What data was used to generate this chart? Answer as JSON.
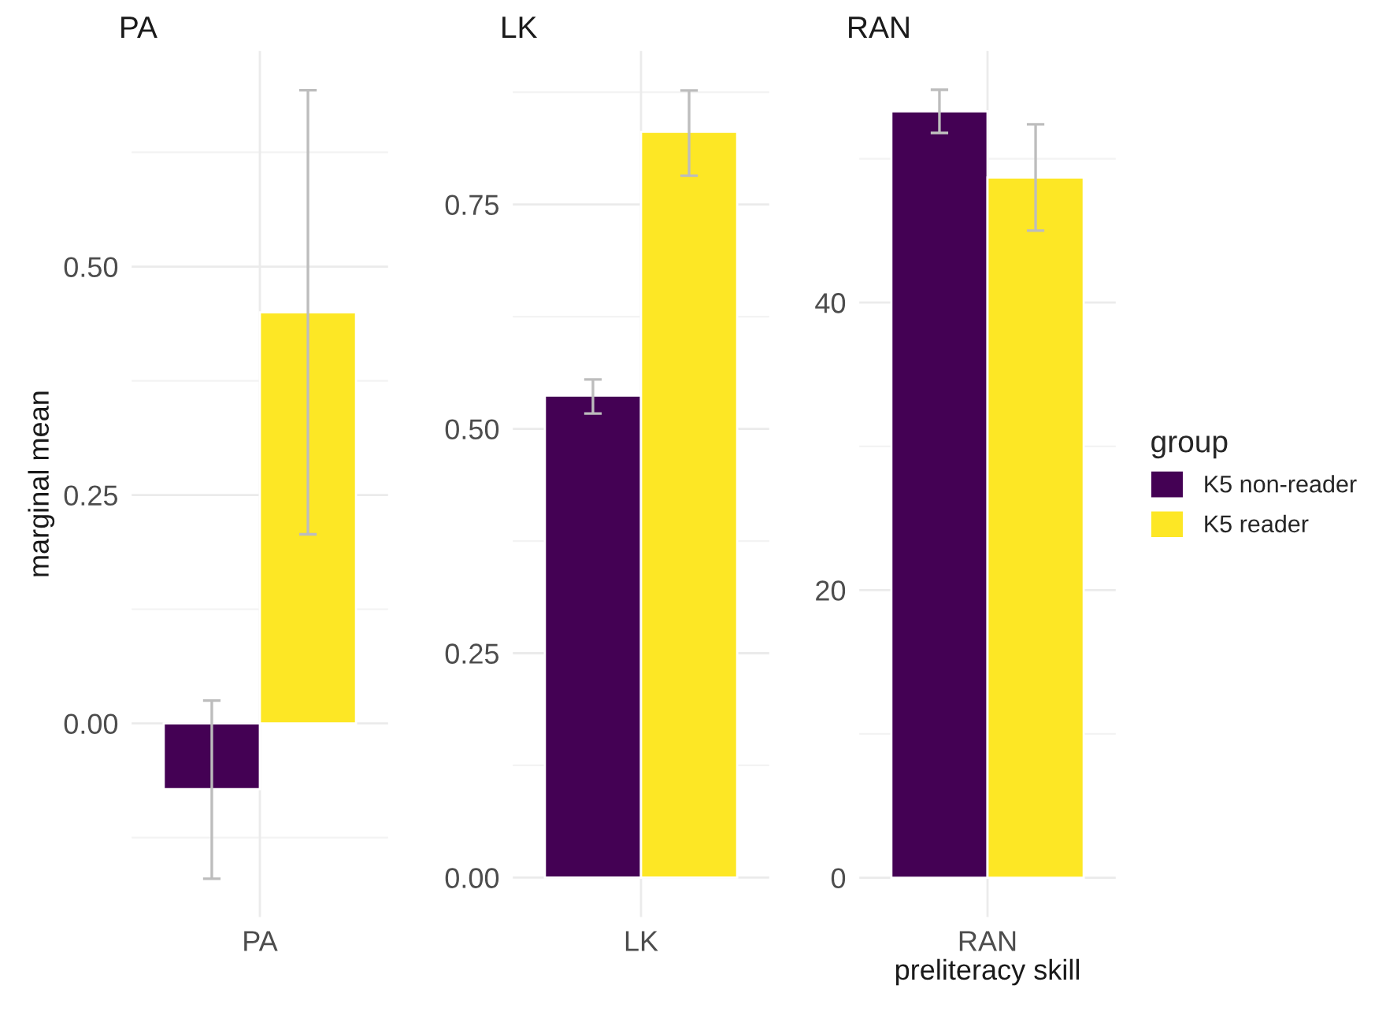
{
  "chart_data": [
    {
      "type": "bar",
      "title": "PA",
      "ylabel": "marginal mean",
      "categories": [
        "PA"
      ],
      "series": [
        {
          "color": "#440154",
          "values": [
            -0.072
          ],
          "errors": [
            [
              -0.17,
              0.025
            ]
          ]
        },
        {
          "color": "#fde725",
          "values": [
            0.45
          ],
          "errors": [
            [
              0.207,
              0.693
            ]
          ]
        }
      ],
      "ylim": [
        -0.212,
        0.736
      ],
      "yticks": [
        {
          "value": -0.125,
          "label": null
        },
        {
          "value": 0,
          "label": "0.00"
        },
        {
          "value": 0.125,
          "label": null
        },
        {
          "value": 0.25,
          "label": "0.25"
        },
        {
          "value": 0.375,
          "label": null
        },
        {
          "value": 0.5,
          "label": "0.50"
        },
        {
          "value": 0.625,
          "label": null
        }
      ],
      "grid": true
    },
    {
      "type": "bar",
      "title": "LK",
      "categories": [
        "LK"
      ],
      "series": [
        {
          "color": "#440154",
          "values": [
            0.537
          ],
          "errors": [
            [
              0.517,
              0.555
            ]
          ]
        },
        {
          "color": "#fde725",
          "values": [
            0.831
          ],
          "errors": [
            [
              0.782,
              0.877
            ]
          ]
        }
      ],
      "ylim": [
        -0.044,
        0.921
      ],
      "yticks": [
        {
          "value": 0,
          "label": "0.00"
        },
        {
          "value": 0.125,
          "label": null
        },
        {
          "value": 0.25,
          "label": "0.25"
        },
        {
          "value": 0.375,
          "label": null
        },
        {
          "value": 0.5,
          "label": "0.50"
        },
        {
          "value": 0.625,
          "label": null
        },
        {
          "value": 0.75,
          "label": "0.75"
        },
        {
          "value": 0.875,
          "label": null
        }
      ],
      "grid": true
    },
    {
      "type": "bar",
      "title": "RAN",
      "xlabel": "preliteracy skill",
      "legend_title": "group",
      "categories": [
        "RAN"
      ],
      "series": [
        {
          "name": "K5 non-reader",
          "color": "#440154",
          "values": [
            53.3
          ],
          "errors": [
            [
              51.8,
              54.8
            ]
          ]
        },
        {
          "name": "K5 reader",
          "color": "#fde725",
          "values": [
            48.7
          ],
          "errors": [
            [
              45.0,
              52.4
            ]
          ]
        }
      ],
      "ylim": [
        -2.74,
        57.5
      ],
      "yticks": [
        0,
        {
          "value": 10,
          "label": null
        },
        20,
        {
          "value": 30,
          "label": null
        },
        40,
        {
          "value": 50,
          "label": null
        }
      ],
      "grid": true,
      "legend": "right"
    }
  ]
}
